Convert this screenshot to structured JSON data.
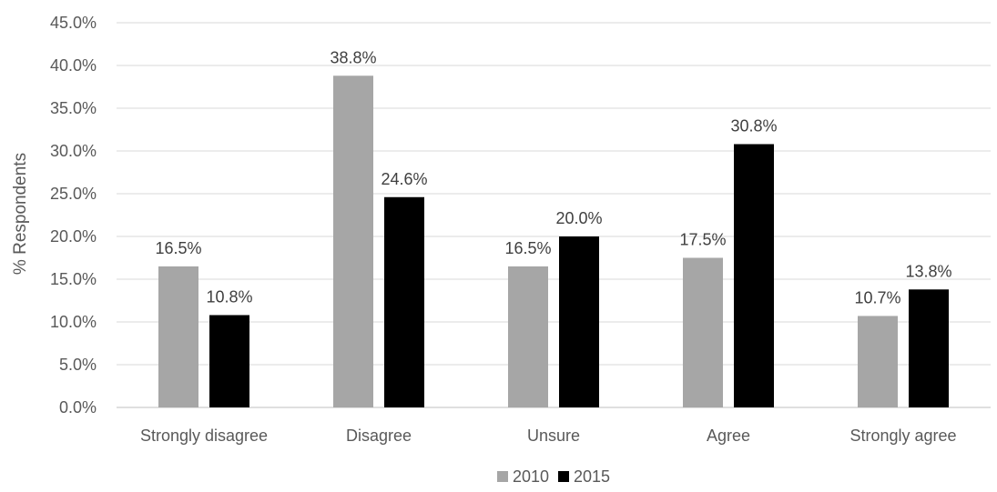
{
  "chart_data": {
    "type": "bar",
    "title": "",
    "xlabel": "",
    "ylabel": "% Respondents",
    "ylim": [
      0,
      45
    ],
    "ytick_step": 5,
    "ytick_labels": [
      "0.0%",
      "5.0%",
      "10.0%",
      "15.0%",
      "20.0%",
      "25.0%",
      "30.0%",
      "35.0%",
      "40.0%",
      "45.0%"
    ],
    "grid": true,
    "legend_position": "bottom",
    "categories": [
      "Strongly disagree",
      "Disagree",
      "Unsure",
      "Agree",
      "Strongly agree"
    ],
    "series": [
      {
        "name": "2010",
        "color": "#a6a6a6",
        "values": [
          16.5,
          38.8,
          16.5,
          17.5,
          10.7
        ],
        "labels": [
          "16.5%",
          "38.8%",
          "16.5%",
          "17.5%",
          "10.7%"
        ]
      },
      {
        "name": "2015",
        "color": "#000000",
        "values": [
          10.8,
          24.6,
          20.0,
          30.8,
          13.8
        ],
        "labels": [
          "10.8%",
          "24.6%",
          "20.0%",
          "30.8%",
          "13.8%"
        ]
      }
    ]
  }
}
